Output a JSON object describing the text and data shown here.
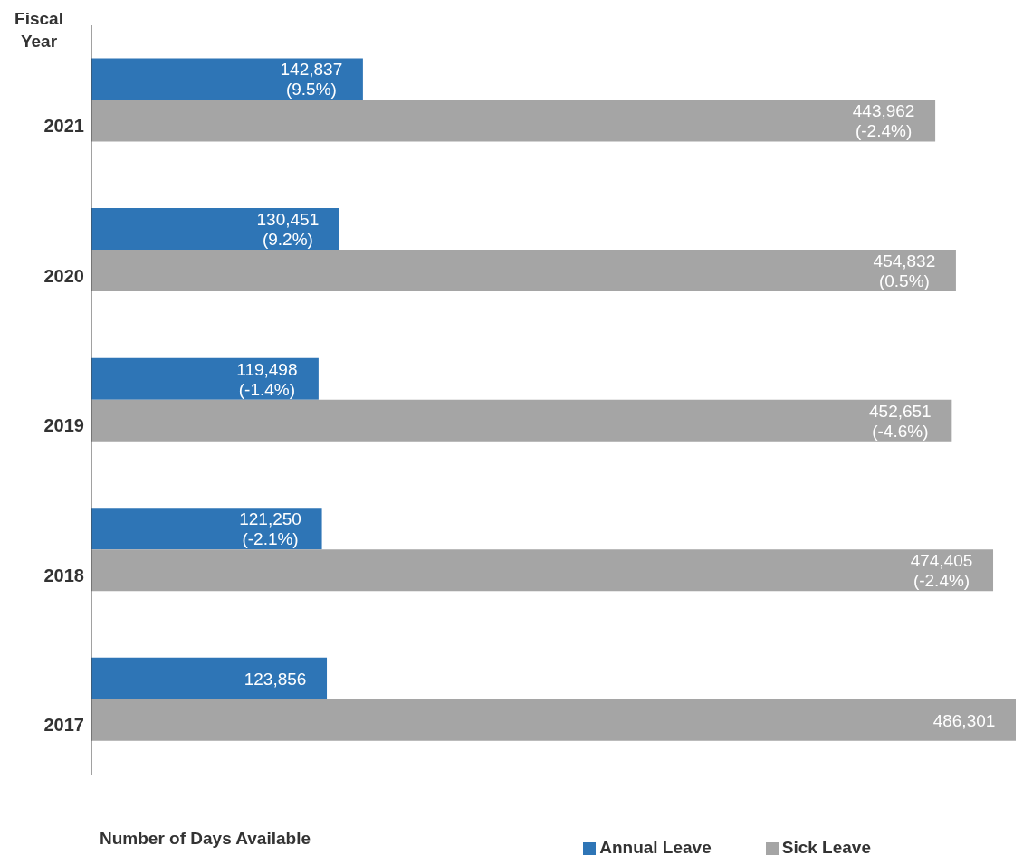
{
  "chart_data": {
    "type": "bar",
    "orientation": "horizontal",
    "ylabel": "Fiscal Year",
    "xlabel": "Number of Days Available",
    "categories": [
      "2021",
      "2020",
      "2019",
      "2018",
      "2017"
    ],
    "series": [
      {
        "name": "Annual Leave",
        "color": "#2e75b6",
        "values": [
          142837,
          130451,
          119498,
          121250,
          123856
        ],
        "value_labels": [
          "142,837\n(9.5%)",
          "130,451\n(9.2%)",
          "119,498\n(-1.4%)",
          "121,250\n(-2.1%)",
          "123,856"
        ]
      },
      {
        "name": "Sick Leave",
        "color": "#a5a5a5",
        "values": [
          443962,
          454832,
          452651,
          474405,
          486301
        ],
        "value_labels": [
          "443,962\n(-2.4%)",
          "454,832\n(0.5%)",
          "452,651\n(-4.6%)",
          "474,405\n(-2.4%)",
          "486,301"
        ]
      }
    ],
    "legend": "bottom right",
    "grid": false
  }
}
